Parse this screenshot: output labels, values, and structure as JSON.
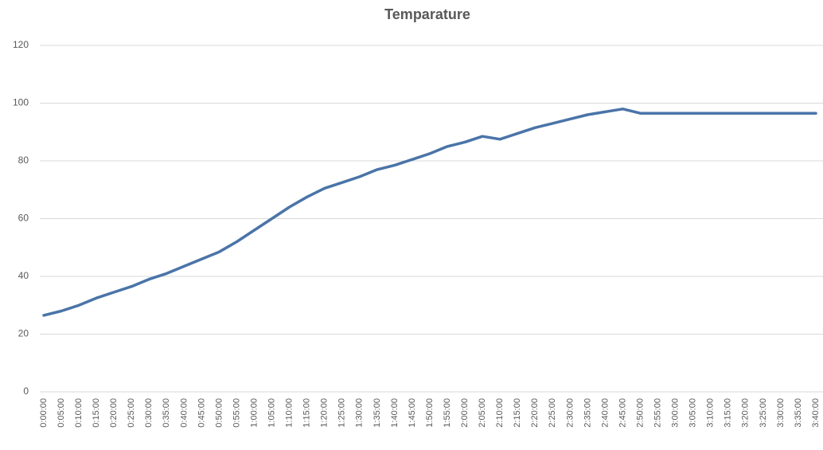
{
  "chart_data": {
    "type": "line",
    "title": "Temparature",
    "categories": [
      "0:00:00",
      "0:05:00",
      "0:10:00",
      "0:15:00",
      "0:20:00",
      "0:25:00",
      "0:30:00",
      "0:35:00",
      "0:40:00",
      "0:45:00",
      "0:50:00",
      "0:55:00",
      "1:00:00",
      "1:05:00",
      "1:10:00",
      "1:15:00",
      "1:20:00",
      "1:25:00",
      "1:30:00",
      "1:35:00",
      "1:40:00",
      "1:45:00",
      "1:50:00",
      "1:55:00",
      "2:00:00",
      "2:05:00",
      "2:10:00",
      "2:15:00",
      "2:20:00",
      "2:25:00",
      "2:30:00",
      "2:35:00",
      "2:40:00",
      "2:45:00",
      "2:50:00",
      "2:55:00",
      "3:00:00",
      "3:05:00",
      "3:10:00",
      "3:15:00",
      "3:20:00",
      "3:25:00",
      "3:30:00",
      "3:35:00",
      "3:40:00"
    ],
    "values": [
      26.5,
      28,
      30,
      32.5,
      34.5,
      36.5,
      39,
      41,
      43.5,
      46,
      48.5,
      52,
      56,
      60,
      64,
      67.5,
      70.5,
      72.5,
      74.5,
      77,
      78.5,
      80.5,
      82.5,
      85,
      86.5,
      88.5,
      87.5,
      89.5,
      91.5,
      93,
      94.5,
      96,
      97,
      98,
      96.5,
      96.5,
      96.5,
      96.5,
      96.5,
      96.5,
      96.5,
      96.5,
      96.5,
      96.5,
      96.5
    ],
    "color": "#4a74a8",
    "ylim": [
      0,
      120
    ],
    "yticks": [
      0,
      20,
      40,
      60,
      80,
      100,
      120
    ],
    "grid": true
  }
}
